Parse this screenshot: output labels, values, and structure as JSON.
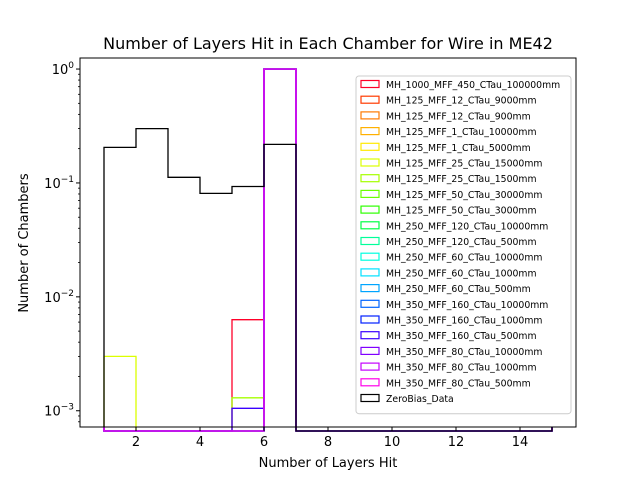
{
  "chart_data": {
    "type": "histogram",
    "title": "Number of Layers Hit in Each Chamber for Wire in ME42",
    "xlabel": "Number of Layers Hit",
    "ylabel": "Number of Chambers",
    "xlim": [
      0.25,
      15.75
    ],
    "ylim": [
      0.00072,
      1.25
    ],
    "yscale": "log",
    "x_ticks": [
      2,
      4,
      6,
      8,
      10,
      12,
      14
    ],
    "y_ticks": [
      {
        "value": 0.001,
        "base": "10",
        "exp": "−3"
      },
      {
        "value": 0.01,
        "base": "10",
        "exp": "−2"
      },
      {
        "value": 0.1,
        "base": "10",
        "exp": "−1"
      },
      {
        "value": 1,
        "base": "10",
        "exp": "0"
      }
    ],
    "legend_position": "upper right",
    "bin_edges": [
      1,
      2,
      3,
      4,
      5,
      6,
      7,
      8,
      9,
      10,
      11,
      12,
      13,
      14,
      15
    ],
    "series": [
      {
        "name": "MH_1000_MFF_450_CTau_100000mm",
        "color": "#ff0029",
        "values": [
          0,
          0,
          0,
          0,
          0.0063,
          0.9937,
          0,
          0,
          0,
          0,
          0,
          0,
          0,
          0
        ]
      },
      {
        "name": "MH_125_MFF_12_CTau_9000mm",
        "color": "#ff3a00",
        "values": [
          0,
          0,
          0,
          0,
          0,
          1.0,
          0,
          0,
          0,
          0,
          0,
          0,
          0,
          0
        ]
      },
      {
        "name": "MH_125_MFF_12_CTau_900mm",
        "color": "#ff7a00",
        "values": [
          0,
          0,
          0,
          0,
          0,
          1.0,
          0,
          0,
          0,
          0,
          0,
          0,
          0,
          0
        ]
      },
      {
        "name": "MH_125_MFF_1_CTau_10000mm",
        "color": "#ffb000",
        "values": [
          0,
          0,
          0,
          0,
          0,
          1.0,
          0,
          0,
          0,
          0,
          0,
          0,
          0,
          0
        ]
      },
      {
        "name": "MH_125_MFF_1_CTau_5000mm",
        "color": "#ffea00",
        "values": [
          0,
          0,
          0,
          0,
          0,
          1.0,
          0,
          0,
          0,
          0,
          0,
          0,
          0,
          0
        ]
      },
      {
        "name": "MH_125_MFF_25_CTau_15000mm",
        "color": "#dcff00",
        "values": [
          0.003,
          0,
          0,
          0,
          0,
          0.997,
          0,
          0,
          0,
          0,
          0,
          0,
          0,
          0
        ]
      },
      {
        "name": "MH_125_MFF_25_CTau_1500mm",
        "color": "#a6ff00",
        "values": [
          0,
          0,
          0,
          0,
          0.0013,
          0.9987,
          0,
          0,
          0,
          0,
          0,
          0,
          0,
          0
        ]
      },
      {
        "name": "MH_125_MFF_50_CTau_30000mm",
        "color": "#6bff00",
        "values": [
          0,
          0,
          0,
          0,
          0,
          1.0,
          0,
          0,
          0,
          0,
          0,
          0,
          0,
          0
        ]
      },
      {
        "name": "MH_125_MFF_50_CTau_3000mm",
        "color": "#2dff00",
        "values": [
          0,
          0,
          0,
          0,
          0,
          1.0,
          0,
          0,
          0,
          0,
          0,
          0,
          0,
          0
        ]
      },
      {
        "name": "MH_250_MFF_120_CTau_10000mm",
        "color": "#00ff44",
        "values": [
          0,
          0,
          0,
          0,
          0,
          1.0,
          0,
          0,
          0,
          0,
          0,
          0,
          0,
          0
        ]
      },
      {
        "name": "MH_250_MFF_120_CTau_500mm",
        "color": "#00ff9a",
        "values": [
          0,
          0,
          0,
          0,
          0,
          1.0,
          0,
          0,
          0,
          0,
          0,
          0,
          0,
          0
        ]
      },
      {
        "name": "MH_250_MFF_60_CTau_10000mm",
        "color": "#00ffe0",
        "values": [
          0,
          0,
          0,
          0,
          0,
          1.0,
          0,
          0,
          0,
          0,
          0,
          0,
          0,
          0
        ]
      },
      {
        "name": "MH_250_MFF_60_CTau_1000mm",
        "color": "#00e0ff",
        "values": [
          0,
          0,
          0,
          0,
          0,
          1.0,
          0,
          0,
          0,
          0,
          0,
          0,
          0,
          0
        ]
      },
      {
        "name": "MH_250_MFF_60_CTau_500mm",
        "color": "#00a5ff",
        "values": [
          0,
          0,
          0,
          0,
          0,
          1.0,
          0,
          0,
          0,
          0,
          0,
          0,
          0,
          0
        ]
      },
      {
        "name": "MH_350_MFF_160_CTau_10000mm",
        "color": "#0064ff",
        "values": [
          0,
          0,
          0,
          0,
          0,
          1.0,
          0,
          0,
          0,
          0,
          0,
          0,
          0,
          0
        ]
      },
      {
        "name": "MH_350_MFF_160_CTau_1000mm",
        "color": "#0020ff",
        "values": [
          0,
          0,
          0,
          0,
          0,
          1.0,
          0,
          0,
          0,
          0,
          0,
          0,
          0,
          0
        ]
      },
      {
        "name": "MH_350_MFF_160_CTau_500mm",
        "color": "#3a00ff",
        "values": [
          0,
          0,
          0,
          0,
          0.00105,
          0.99895,
          0,
          0,
          0,
          0,
          0,
          0,
          0,
          0
        ]
      },
      {
        "name": "MH_350_MFF_80_CTau_10000mm",
        "color": "#8000ff",
        "values": [
          0,
          0,
          0,
          0,
          0,
          1.0,
          0,
          0,
          0,
          0,
          0,
          0,
          0,
          0
        ]
      },
      {
        "name": "MH_350_MFF_80_CTau_1000mm",
        "color": "#c400ff",
        "values": [
          0,
          0,
          0,
          0,
          0,
          1.0,
          0,
          0,
          0,
          0,
          0,
          0,
          0,
          0
        ]
      },
      {
        "name": "MH_350_MFF_80_CTau_500mm",
        "color": "#ff00ea",
        "values": [
          0,
          0,
          0,
          0,
          0,
          1.0,
          0,
          0,
          0,
          0,
          0,
          0,
          0,
          0
        ]
      },
      {
        "name": "ZeroBias_Data",
        "color": "#000000",
        "values": [
          0.205,
          0.3,
          0.112,
          0.081,
          0.093,
          0.218,
          0,
          0,
          0,
          0,
          0,
          0,
          0,
          0
        ]
      }
    ]
  }
}
